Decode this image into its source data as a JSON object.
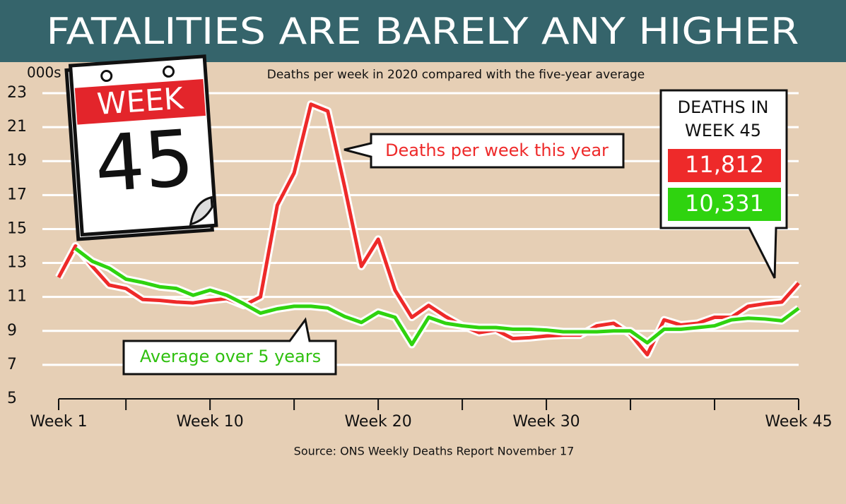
{
  "chart_data": {
    "type": "line",
    "title": "FATALITIES ARE BARELY ANY HIGHER",
    "subtitle": "Deaths per week in 2020 compared with the five-year average",
    "y_unit": "000s",
    "source": "Source: ONS Weekly Deaths Report November 17",
    "x": [
      1,
      2,
      3,
      4,
      5,
      6,
      7,
      8,
      9,
      10,
      11,
      12,
      13,
      14,
      15,
      16,
      17,
      18,
      19,
      20,
      21,
      22,
      23,
      24,
      25,
      26,
      27,
      28,
      29,
      30,
      31,
      32,
      33,
      34,
      35,
      36,
      37,
      38,
      39,
      40,
      41,
      42,
      43,
      44,
      45
    ],
    "xlim": [
      1,
      45
    ],
    "xticks": [
      {
        "value": 1,
        "label": "Week 1"
      },
      {
        "value": 10,
        "label": "Week 10"
      },
      {
        "value": 20,
        "label": "Week 20"
      },
      {
        "value": 30,
        "label": "Week 30"
      },
      {
        "value": 45,
        "label": "Week 45"
      }
    ],
    "xminor_ticks": [
      5,
      15,
      25,
      35,
      40
    ],
    "ylim": [
      5,
      23
    ],
    "yticks": [
      5,
      7,
      9,
      11,
      13,
      15,
      17,
      19,
      21,
      23
    ],
    "grid": true,
    "series": [
      {
        "name": "Deaths per week this year",
        "color": "#ee2a2a",
        "values": [
          12.15,
          14.0,
          12.8,
          11.7,
          11.5,
          10.85,
          10.8,
          10.7,
          10.65,
          10.8,
          10.9,
          10.5,
          11.0,
          16.4,
          18.3,
          22.35,
          21.95,
          17.5,
          12.8,
          14.4,
          11.4,
          9.8,
          10.5,
          9.85,
          9.3,
          8.9,
          9.05,
          8.55,
          8.6,
          8.7,
          8.75,
          8.75,
          9.3,
          9.45,
          8.8,
          7.6,
          9.65,
          9.35,
          9.45,
          9.8,
          9.8,
          10.45,
          10.6,
          10.7,
          11.812
        ],
        "value_labels": [
          null,
          null,
          null,
          null,
          null,
          null,
          null,
          null,
          null,
          null,
          null,
          null,
          null,
          null,
          null,
          null,
          null,
          null,
          null,
          null,
          null,
          null,
          null,
          null,
          null,
          null,
          null,
          null,
          null,
          null,
          null,
          null,
          null,
          null,
          null,
          null,
          null,
          null,
          null,
          null,
          null,
          null,
          null,
          null,
          "11,812"
        ]
      },
      {
        "name": "Average over 5 years",
        "color": "#2fd30f",
        "values": [
          null,
          13.85,
          13.1,
          12.7,
          12.05,
          11.85,
          11.6,
          11.5,
          11.1,
          11.4,
          11.1,
          10.6,
          10.05,
          10.3,
          10.45,
          10.45,
          10.35,
          9.85,
          9.5,
          10.1,
          9.8,
          8.2,
          9.8,
          9.45,
          9.3,
          9.2,
          9.2,
          9.1,
          9.1,
          9.05,
          8.95,
          8.95,
          8.95,
          9.0,
          9.0,
          8.3,
          9.1,
          9.1,
          9.2,
          9.3,
          9.65,
          9.75,
          9.7,
          9.6,
          10.331
        ],
        "value_labels": [
          null,
          null,
          null,
          null,
          null,
          null,
          null,
          null,
          null,
          null,
          null,
          null,
          null,
          null,
          null,
          null,
          null,
          null,
          null,
          null,
          null,
          null,
          null,
          null,
          null,
          null,
          null,
          null,
          null,
          null,
          null,
          null,
          null,
          null,
          null,
          null,
          null,
          null,
          null,
          null,
          null,
          null,
          null,
          null,
          "10,331"
        ]
      }
    ],
    "annotations": {
      "box_title_1": "DEATHS IN",
      "box_title_2": "WEEK 45",
      "calendar_word": "WEEK",
      "calendar_number": "45"
    }
  }
}
